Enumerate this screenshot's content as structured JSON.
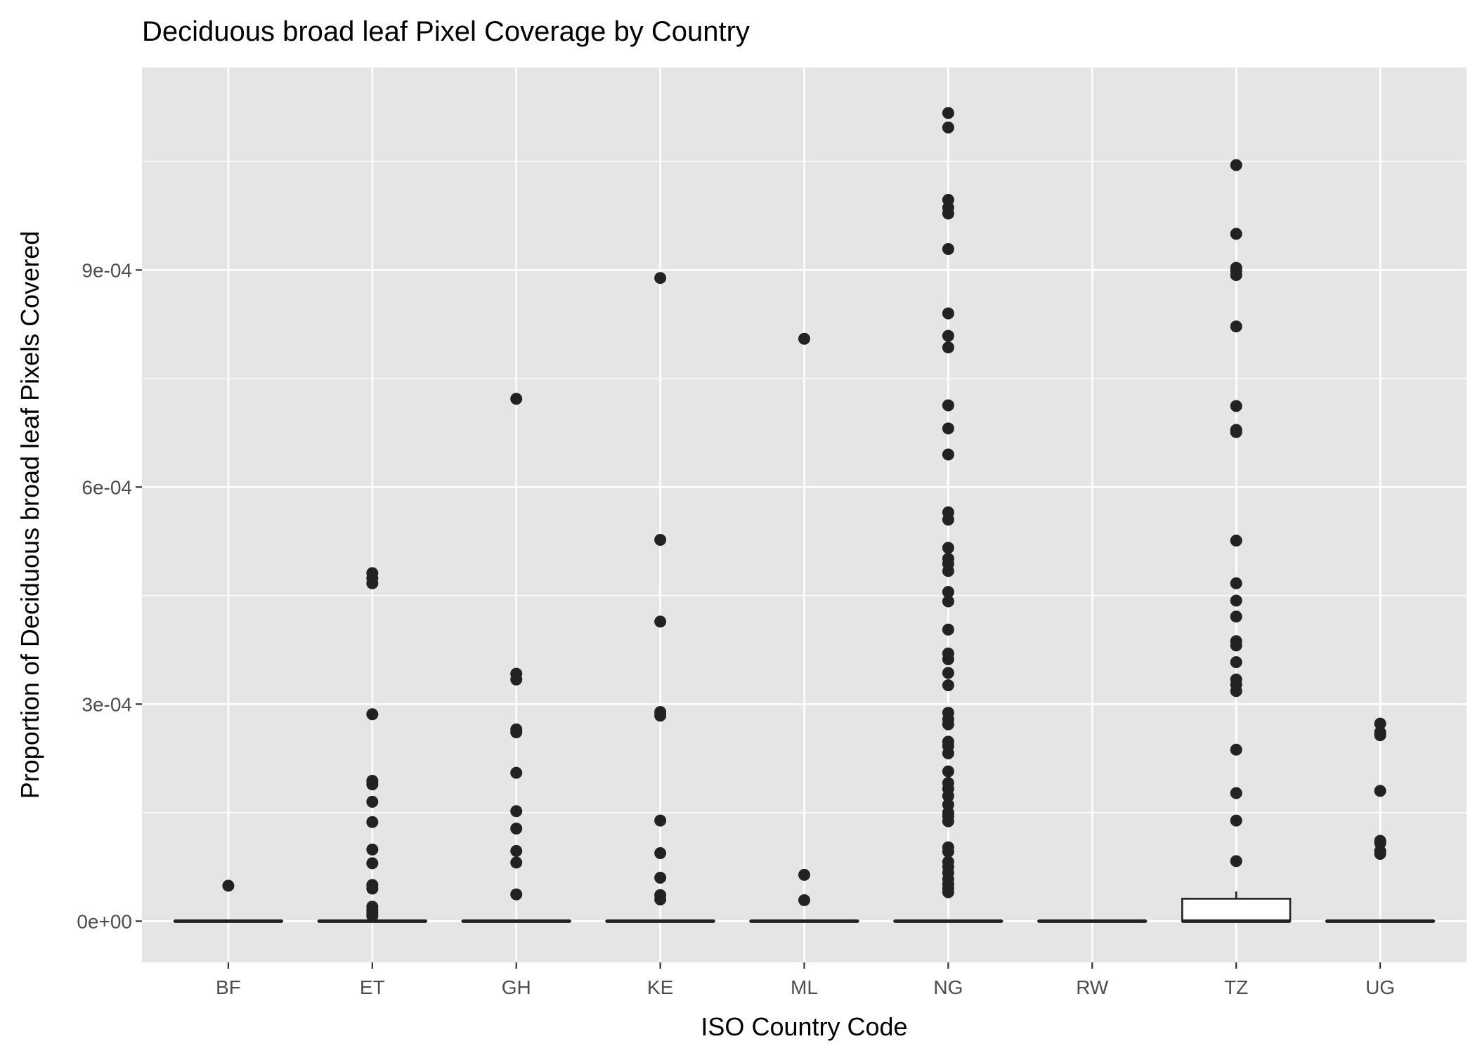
{
  "chart_data": {
    "type": "boxplot",
    "title": "Deciduous broad leaf Pixel Coverage by Country",
    "xlabel": "ISO Country Code",
    "ylabel": "Proportion of Deciduous broad leaf Pixels Covered",
    "categories": [
      "BF",
      "ET",
      "GH",
      "KE",
      "ML",
      "NG",
      "RW",
      "TZ",
      "UG"
    ],
    "ylim": [
      -5.7e-05,
      0.00118
    ],
    "yticks": [
      0,
      0.0003,
      0.0006,
      0.0009
    ],
    "ytick_labels": [
      "0e+00",
      "3e-04",
      "6e-04",
      "9e-04"
    ],
    "grid": true,
    "colors": {
      "panel": "#e5e5e5",
      "grid": "#ffffff",
      "point": "#222222",
      "box_fill": "#ffffff",
      "box_line": "#222222",
      "text": "#000000",
      "tick_text": "#4d4d4d"
    },
    "boxes": [
      {
        "category": "BF",
        "lower": 0,
        "q1": 0,
        "median": 0,
        "q3": 0,
        "upper": 0
      },
      {
        "category": "ET",
        "lower": 0,
        "q1": 0,
        "median": 0,
        "q3": 0,
        "upper": 0
      },
      {
        "category": "GH",
        "lower": 0,
        "q1": 0,
        "median": 0,
        "q3": 0,
        "upper": 0
      },
      {
        "category": "KE",
        "lower": 0,
        "q1": 0,
        "median": 0,
        "q3": 0,
        "upper": 0
      },
      {
        "category": "ML",
        "lower": 0,
        "q1": 0,
        "median": 0,
        "q3": 0,
        "upper": 0
      },
      {
        "category": "NG",
        "lower": 0,
        "q1": 0,
        "median": 0,
        "q3": 0,
        "upper": 0
      },
      {
        "category": "RW",
        "lower": 0,
        "q1": 0,
        "median": 0,
        "q3": 0,
        "upper": 0
      },
      {
        "category": "TZ",
        "lower": 0,
        "q1": 0,
        "median": 0,
        "q3": 3.1e-05,
        "upper": 4.1e-05
      },
      {
        "category": "UG",
        "lower": 0,
        "q1": 0,
        "median": 0,
        "q3": 0,
        "upper": 0
      }
    ],
    "outliers": [
      {
        "category": "BF",
        "values": [
          4.9e-05
        ]
      },
      {
        "category": "ET",
        "values": [
          0.000481,
          0.000474,
          0.000467,
          0.000286,
          0.000194,
          0.000189,
          0.000165,
          0.000137,
          9.9e-05,
          8e-05,
          5e-05,
          4.5e-05,
          2e-05,
          1.5e-05,
          1.1e-05,
          7e-06
        ]
      },
      {
        "category": "GH",
        "values": [
          0.000722,
          0.000342,
          0.000334,
          0.000265,
          0.000261,
          0.000205,
          0.000152,
          0.000128,
          9.7e-05,
          8.1e-05,
          3.7e-05
        ]
      },
      {
        "category": "KE",
        "values": [
          0.000889,
          0.000527,
          0.000414,
          0.000289,
          0.000284,
          0.000139,
          9.4e-05,
          6e-05,
          3.6e-05,
          3e-05
        ]
      },
      {
        "category": "ML",
        "values": [
          0.000805,
          6.4e-05,
          2.9e-05
        ]
      },
      {
        "category": "NG",
        "values": [
          0.001117,
          0.001097,
          0.000997,
          0.000986,
          0.000978,
          0.000929,
          0.00084,
          0.000809,
          0.000793,
          0.000713,
          0.000681,
          0.000645,
          0.000565,
          0.000555,
          0.000516,
          0.000501,
          0.000494,
          0.000484,
          0.000455,
          0.000442,
          0.000403,
          0.00037,
          0.000362,
          0.000343,
          0.000326,
          0.000288,
          0.000279,
          0.000272,
          0.000248,
          0.000242,
          0.000232,
          0.000207,
          0.000191,
          0.000183,
          0.000173,
          0.000161,
          0.00015,
          0.000145,
          0.000138,
          0.000102,
          9.6e-05,
          8.2e-05,
          7.5e-05,
          6.7e-05,
          5.8e-05,
          5.1e-05,
          4.5e-05,
          4e-05
        ]
      },
      {
        "category": "TZ",
        "values": [
          0.001045,
          0.00095,
          0.000903,
          0.000899,
          0.000893,
          0.000822,
          0.000712,
          0.000679,
          0.000676,
          0.000526,
          0.000467,
          0.000443,
          0.000421,
          0.000387,
          0.000381,
          0.000358,
          0.000334,
          0.000327,
          0.000318,
          0.000237,
          0.000177,
          0.000139,
          8.3e-05
        ]
      },
      {
        "category": "UG",
        "values": [
          0.000273,
          0.000261,
          0.000257,
          0.00018,
          0.000111,
          0.000108,
          9.7e-05,
          9.3e-05
        ]
      }
    ]
  }
}
